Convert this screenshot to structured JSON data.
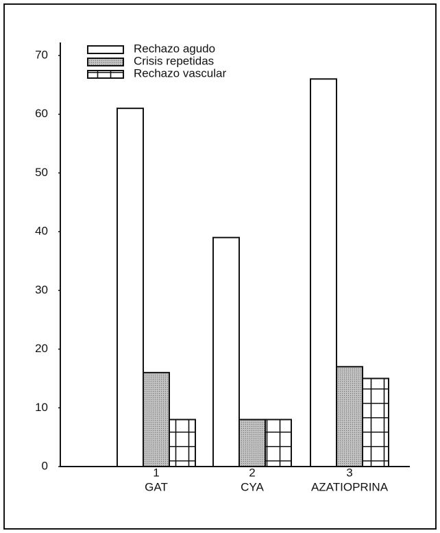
{
  "chart_data": {
    "type": "bar",
    "categories": [
      "GAT",
      "CYA",
      "AZATIOPRINA"
    ],
    "category_numbers": [
      1,
      2,
      3
    ],
    "series": [
      {
        "name": "Rechazo agudo",
        "color": "#ffffff",
        "pattern": "none",
        "values": [
          61,
          39,
          66
        ]
      },
      {
        "name": "Crisis repetidas",
        "color": "#b4b4b4",
        "pattern": "dots",
        "values": [
          16,
          8,
          17
        ]
      },
      {
        "name": "Rechazo vascular",
        "color": "#ffffff",
        "pattern": "grid",
        "values": [
          8,
          8,
          15
        ]
      }
    ],
    "ylim": [
      0,
      70
    ],
    "yticks": [
      0,
      10,
      20,
      30,
      40,
      50,
      60,
      70
    ],
    "grid": false,
    "legend": "top-left"
  }
}
